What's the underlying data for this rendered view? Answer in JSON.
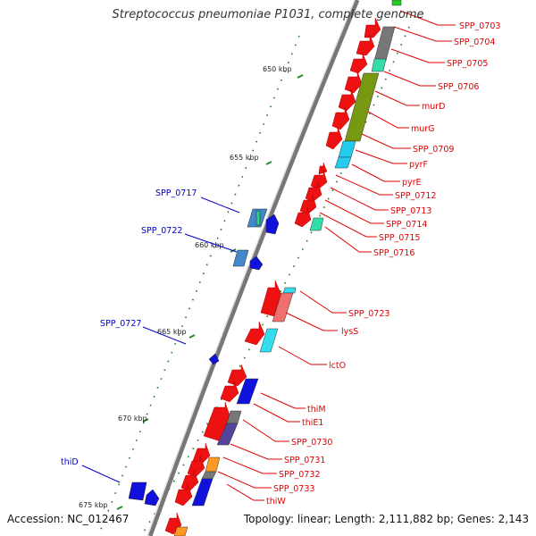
{
  "title": "Streptococcus pneumoniae P1031, complete genome",
  "footer": {
    "accession": "Accession: NC_012467",
    "topology": "Topology: linear; Length: 2,111,882 bp; Genes: 2,143"
  },
  "colors": {
    "forward_label": "#e00000",
    "reverse_label": "#0000cc",
    "backbone": "#777777",
    "tick_mark": "#2a8a2a"
  },
  "ticks": [
    {
      "label": "650 kbp"
    },
    {
      "label": "655 kbp"
    },
    {
      "label": "660 kbp"
    },
    {
      "label": "665 kbp"
    },
    {
      "label": "670 kbp"
    },
    {
      "label": "675 kbp"
    }
  ],
  "forward_labels": [
    "SPP_0703",
    "SPP_0704",
    "SPP_0705",
    "SPP_0706",
    "murD",
    "murG",
    "SPP_0709",
    "pyrF",
    "pyrE",
    "SPP_0712",
    "SPP_0713",
    "SPP_0714",
    "SPP_0715",
    "SPP_0716",
    "SPP_0723",
    "lysS",
    "lctO",
    "thiM",
    "thiE1",
    "SPP_0730",
    "SPP_0731",
    "SPP_0732",
    "SPP_0733",
    "thiW"
  ],
  "reverse_labels": [
    "SPP_0717",
    "SPP_0722",
    "SPP_0727",
    "thiD"
  ]
}
